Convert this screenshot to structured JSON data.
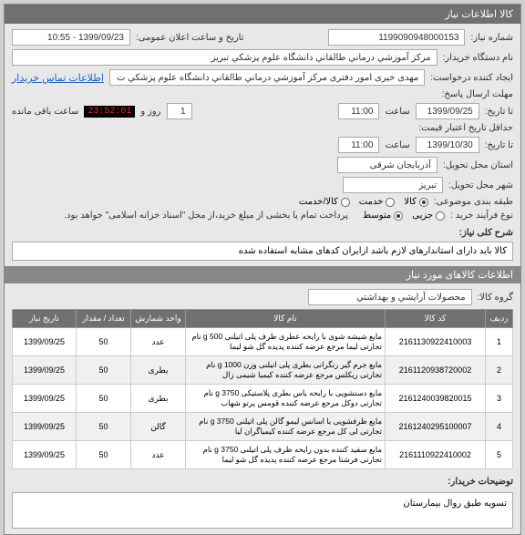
{
  "header": {
    "title": "کالا اطلاعات نیاز"
  },
  "fields": {
    "need_no_label": "شماره نیاز:",
    "need_no": "1199090948000153",
    "announce_label": "تاریخ و ساعت اعلان عمومی:",
    "announce": "1399/09/23 - 10:55",
    "buyer_org_label": "نام دستگاه خریدار:",
    "buyer_org": "مرکز آموزشي درماني طالقاني دانشگاه علوم پزشکي تبریز",
    "creator_label": "ایجاد کننده درخواست:",
    "creator": "مهدی خیری امور دفتری مرکز آموزشي درماني طالقاني دانشگاه علوم پزشکي ت",
    "contact_link": "اطلاعات تماس خریدار",
    "deadline_send_label": "مهلت ارسال پاسخ:",
    "deadline_to_label": "تا تاریخ:",
    "deadline_date": "1399/09/25",
    "hour_label": "ساعت",
    "deadline_hour": "11:00",
    "day_label": "روز و",
    "day_val": "1",
    "countdown": "23:52:01",
    "remain_label": "ساعت باقی مانده",
    "min_validity_label": "حداقل تاریخ اعتبار قیمت:",
    "min_validity_to": "تا تاریخ:",
    "validity_date": "1399/10/30",
    "validity_hour": "11:00",
    "delivery_province_label": "استان محل تحویل:",
    "delivery_province": "آذربایجان شرقی",
    "delivery_city_label": "شهر محل تحویل:",
    "delivery_city": "تبریز",
    "class_label": "طبقه بندی موضوعی:",
    "class_goods": "کالا",
    "class_service": "خدمت",
    "class_both": "کالا/خدمت",
    "process_label": "نوع فرآیند خرید :",
    "process_small": "جزیی",
    "process_medium": "متوسط",
    "process_note": "پرداخت تمام یا بخشی از مبلغ خرید،از محل \"اسناد خزانه اسلامی\" خواهد بود."
  },
  "need_desc": {
    "label": "شرح کلی نیاز:",
    "text": "کالا باید دارای استاندارهای لازم باشد ازایران کدهای مشابه استفاده شده"
  },
  "goods_section": {
    "title": "اطلاعات کالاهای مورد نیاز",
    "group_label": "گروه کالا:",
    "group": "محصولات آرایشي و بهداشتي"
  },
  "table": {
    "headers": [
      "ردیف",
      "کد کالا",
      "نام کالا",
      "واحد شمارش",
      "تعداد / مقدار",
      "تاریخ نیاز"
    ],
    "rows": [
      {
        "idx": "1",
        "code": "2161130922410003",
        "name": "مایع شیشه شوی با رایحه عطری ظرف پلی اتیلنی 500 g نام تجارتی لیما مرجع عرضه کننده پدیده گل شو لیما",
        "unit": "عدد",
        "qty": "50",
        "date": "1399/09/25"
      },
      {
        "idx": "2",
        "code": "2161120938720002",
        "name": "مایع جرم گیر رنگرانی بطری پلی اتیلنی وزن 1000 g نام تجارتی ریکلس مرجع عرضه کننده کیمیا شیمی زال",
        "unit": "بطری",
        "qty": "50",
        "date": "1399/09/25"
      },
      {
        "idx": "3",
        "code": "2161240039820015",
        "name": "مایع دستشویی با رایحه یاس بطری پلاستیکی 3750 g نام تجارتی دوکل مرجع عرضه کننده قومس پرتو شهاب",
        "unit": "بطری",
        "qty": "50",
        "date": "1399/09/25"
      },
      {
        "idx": "4",
        "code": "2161240295100007",
        "name": "مایع ظرفشویی با اسانس لیمو گالن پلی اتیلنی 3750 g نام تجارتی لی کل مرجع عرضه کننده کیمیاگران لیا",
        "unit": "گالن",
        "qty": "50",
        "date": "1399/09/25"
      },
      {
        "idx": "5",
        "code": "2161110922410002",
        "name": "مایع سفید کننده بدون رایحه ظرف پلی اتیلنی 3750 g نام تجارتی فرشتا مرجع عرضه کننده پدیده گل شو لیما",
        "unit": "عدد",
        "qty": "50",
        "date": "1399/09/25"
      }
    ]
  },
  "notes": {
    "label": "توضیحات خریدار:",
    "text": "تسویه طبق روال بیمارستان"
  }
}
